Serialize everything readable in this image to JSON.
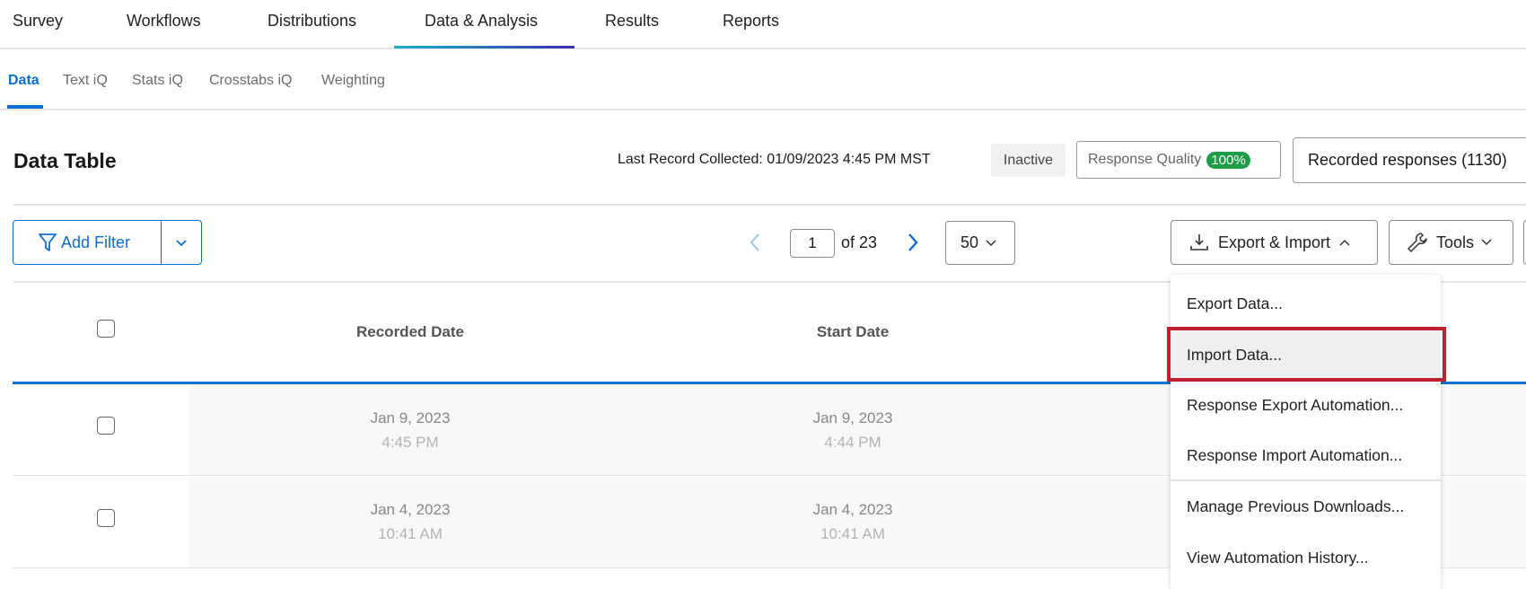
{
  "top_tabs": [
    "Survey",
    "Workflows",
    "Distributions",
    "Data & Analysis",
    "Results",
    "Reports"
  ],
  "active_top_tab": "Data & Analysis",
  "sub_tabs": [
    "Data",
    "Text iQ",
    "Stats iQ",
    "Crosstabs iQ",
    "Weighting"
  ],
  "active_sub_tab": "Data",
  "header": {
    "title": "Data Table",
    "last_record": "Last Record Collected: 01/09/2023 4:45 PM MST",
    "status": "Inactive",
    "quality_label": "Response Quality",
    "quality_value": "100%",
    "recorded": "Recorded responses (1130)"
  },
  "toolbar": {
    "add_filter": "Add Filter",
    "page": "1",
    "of_pages": "of 23",
    "per_page": "50",
    "export_import": "Export & Import",
    "tools": "Tools"
  },
  "table": {
    "columns": [
      "Recorded Date",
      "Start Date"
    ],
    "rows": [
      {
        "recorded_date": "Jan 9, 2023",
        "recorded_time": "4:45 PM",
        "start_date": "Jan 9, 2023",
        "start_time": "4:44 PM"
      },
      {
        "recorded_date": "Jan 4, 2023",
        "recorded_time": "10:41 AM",
        "start_date": "Jan 4, 2023",
        "start_time": "10:41 AM"
      }
    ]
  },
  "menu": {
    "items": [
      "Export Data...",
      "Import Data...",
      "Response Export Automation...",
      "Response Import Automation...",
      "Manage Previous Downloads...",
      "View Automation History..."
    ],
    "highlighted": "Import Data..."
  },
  "colors": {
    "accent": "#0b6ed0",
    "highlight_border": "#c0202f",
    "quality_badge": "#1f9d48"
  }
}
